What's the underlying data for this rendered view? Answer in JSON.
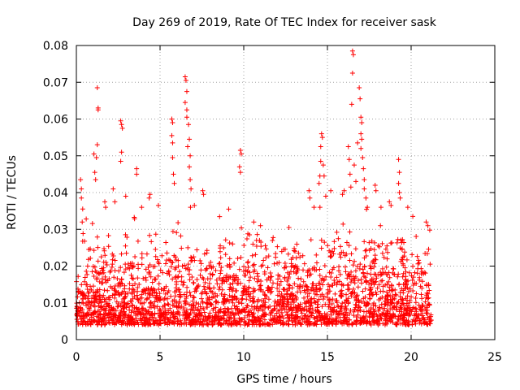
{
  "chart_data": {
    "type": "scatter",
    "title": "Day 269 of 2019, Rate Of TEC Index for receiver sask",
    "xlabel": "GPS time / hours",
    "ylabel": "ROTI / TECUs",
    "xlim": [
      0,
      25
    ],
    "ylim": [
      0,
      0.08
    ],
    "x_ticks": [
      0,
      5,
      10,
      15,
      20,
      25
    ],
    "x_tick_labels": [
      "0",
      "5",
      "10",
      "15",
      "20",
      "25"
    ],
    "y_ticks": [
      0,
      0.01,
      0.02,
      0.03,
      0.04,
      0.05,
      0.06,
      0.07,
      0.08
    ],
    "y_tick_labels": [
      "0",
      "0.01",
      "0.02",
      "0.03",
      "0.04",
      "0.05",
      "0.06",
      "0.07",
      "0.08"
    ],
    "grid": true,
    "marker": "+",
    "marker_color": "#ff0000",
    "data_x_range": [
      0,
      21.2
    ],
    "baseline_band": [
      0.004,
      0.02
    ],
    "series": [
      {
        "name": "ROTI",
        "color": "#ff0000",
        "points": [
          [
            0.25,
            0.0435
          ],
          [
            0.3,
            0.041
          ],
          [
            0.3,
            0.0385
          ],
          [
            0.35,
            0.032
          ],
          [
            1.05,
            0.0505
          ],
          [
            1.1,
            0.0455
          ],
          [
            1.15,
            0.0435
          ],
          [
            1.25,
            0.0685
          ],
          [
            1.3,
            0.0625
          ],
          [
            1.3,
            0.063
          ],
          [
            1.25,
            0.053
          ],
          [
            1.2,
            0.0495
          ],
          [
            1.7,
            0.0375
          ],
          [
            1.75,
            0.036
          ],
          [
            2.2,
            0.041
          ],
          [
            2.3,
            0.0375
          ],
          [
            2.65,
            0.0595
          ],
          [
            2.7,
            0.0585
          ],
          [
            2.75,
            0.0575
          ],
          [
            2.7,
            0.051
          ],
          [
            2.65,
            0.0485
          ],
          [
            2.95,
            0.039
          ],
          [
            3.6,
            0.0465
          ],
          [
            3.6,
            0.045
          ],
          [
            3.9,
            0.036
          ],
          [
            4.35,
            0.0385
          ],
          [
            4.4,
            0.0395
          ],
          [
            4.9,
            0.0365
          ],
          [
            5.7,
            0.06
          ],
          [
            5.75,
            0.059
          ],
          [
            5.7,
            0.0555
          ],
          [
            5.75,
            0.0535
          ],
          [
            5.75,
            0.0495
          ],
          [
            5.8,
            0.045
          ],
          [
            5.85,
            0.0425
          ],
          [
            6.5,
            0.0715
          ],
          [
            6.55,
            0.0705
          ],
          [
            6.6,
            0.0675
          ],
          [
            6.5,
            0.0645
          ],
          [
            6.6,
            0.0625
          ],
          [
            6.6,
            0.0605
          ],
          [
            6.7,
            0.0585
          ],
          [
            6.75,
            0.0545
          ],
          [
            6.65,
            0.0525
          ],
          [
            6.8,
            0.05
          ],
          [
            6.75,
            0.047
          ],
          [
            6.8,
            0.0435
          ],
          [
            6.85,
            0.041
          ],
          [
            7.05,
            0.0365
          ],
          [
            7.55,
            0.0405
          ],
          [
            7.6,
            0.0395
          ],
          [
            9.8,
            0.0515
          ],
          [
            9.85,
            0.0505
          ],
          [
            9.75,
            0.047
          ],
          [
            9.8,
            0.0455
          ],
          [
            9.1,
            0.0355
          ],
          [
            10.6,
            0.032
          ],
          [
            11.0,
            0.031
          ],
          [
            12.7,
            0.0305
          ],
          [
            13.9,
            0.0405
          ],
          [
            13.95,
            0.0385
          ],
          [
            14.2,
            0.036
          ],
          [
            14.5,
            0.0425
          ],
          [
            14.55,
            0.0445
          ],
          [
            14.6,
            0.0485
          ],
          [
            14.65,
            0.056
          ],
          [
            14.7,
            0.055
          ],
          [
            14.6,
            0.0525
          ],
          [
            14.75,
            0.0475
          ],
          [
            14.8,
            0.0445
          ],
          [
            14.9,
            0.039
          ],
          [
            15.2,
            0.0405
          ],
          [
            15.9,
            0.0395
          ],
          [
            16.0,
            0.0405
          ],
          [
            16.25,
            0.0525
          ],
          [
            16.3,
            0.049
          ],
          [
            16.35,
            0.045
          ],
          [
            16.4,
            0.0415
          ],
          [
            16.5,
            0.0785
          ],
          [
            16.55,
            0.0775
          ],
          [
            16.5,
            0.0725
          ],
          [
            16.45,
            0.064
          ],
          [
            16.6,
            0.0475
          ],
          [
            16.7,
            0.043
          ],
          [
            16.8,
            0.0535
          ],
          [
            16.9,
            0.0685
          ],
          [
            16.95,
            0.0655
          ],
          [
            17.0,
            0.0605
          ],
          [
            17.05,
            0.059
          ],
          [
            17.0,
            0.056
          ],
          [
            17.05,
            0.0545
          ],
          [
            17.0,
            0.052
          ],
          [
            17.1,
            0.0495
          ],
          [
            17.15,
            0.0465
          ],
          [
            17.2,
            0.0435
          ],
          [
            17.2,
            0.041
          ],
          [
            17.3,
            0.0385
          ],
          [
            17.85,
            0.042
          ],
          [
            17.9,
            0.0405
          ],
          [
            18.2,
            0.036
          ],
          [
            18.7,
            0.0375
          ],
          [
            18.8,
            0.0365
          ],
          [
            19.25,
            0.049
          ],
          [
            19.3,
            0.0455
          ],
          [
            19.25,
            0.0425
          ],
          [
            19.3,
            0.04
          ],
          [
            19.35,
            0.0385
          ],
          [
            19.8,
            0.036
          ],
          [
            20.1,
            0.0335
          ],
          [
            20.9,
            0.032
          ],
          [
            21.0,
            0.031
          ]
        ]
      }
    ]
  }
}
